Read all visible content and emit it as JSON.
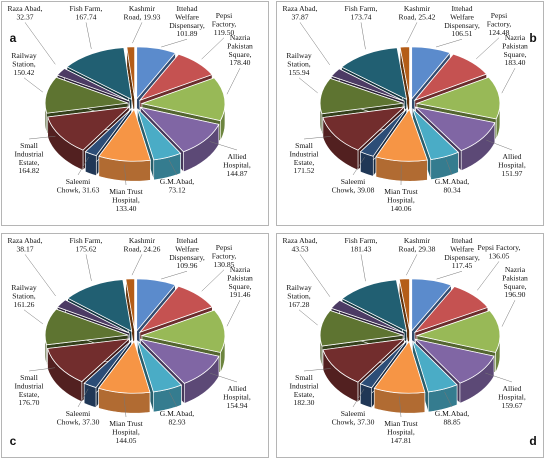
{
  "colors": {
    "Ittehad Welfare Dispensary": "#5b8bcc",
    "Pepsi Factory": "#c55251",
    "Nazria Pakistan Square": "#98b957",
    "Allied Hospital": "#8066a4",
    "G.M.Abad": "#4aacc6",
    "Mian Trust Hospital": "#f69545",
    "Saleemi Chowk": "#2c4d77",
    "Small Industrial Estate": "#722d2d",
    "Railway Station": "#5e7431",
    "Raza Abad": "#4c3b64",
    "Fish Farm": "#215f72",
    "Kashmir Road": "#b45d18"
  },
  "chart_data": [
    {
      "type": "pie",
      "panel": "a",
      "categories": [
        "Ittehad Welfare Dispensary",
        "Pepsi Factory",
        "Nazria Pakistan Square",
        "Allied Hospital",
        "G.M.Abad",
        "Mian Trust Hospital",
        "Saleemi Chowk",
        "Small Industrial Estate",
        "Railway Station",
        "Raza Abad",
        "Fish Farm",
        "Kashmir Road"
      ],
      "labels": [
        "Ittehad Welfare Dispensary, 101.89",
        "Pepsi Factory, 119.50",
        "Nazria Pakistan Square, 178.40",
        "Allied Hospital, 144.87",
        "G.M.Abad, 73.12",
        "Mian Trust Hospital, 133.40",
        "Saleemi Chowk, 31.63",
        "Small Industrial Estate, 164.82",
        "Railway Station, 150.42",
        "Raza Abad, 32.37",
        "Fish Farm, 167.74",
        "Kashmir Road, 19.93"
      ],
      "values": [
        101.89,
        119.5,
        178.4,
        144.87,
        73.12,
        133.4,
        31.63,
        164.82,
        150.42,
        32.37,
        167.74,
        19.93
      ]
    },
    {
      "type": "pie",
      "panel": "b",
      "categories": [
        "Ittehad Welfare Dispensary",
        "Pepsi Factory",
        "Nazria Pakistan Square",
        "Allied Hospital",
        "G.M.Abad",
        "Mian Trust Hospital",
        "Saleemi Chowk",
        "Small Industrial Estate",
        "Railway Station",
        "Raza Abad",
        "Fish Farm",
        "Kashmir Road"
      ],
      "labels": [
        "Ittehad Welfare Dispensary, 106.51",
        "Pepsi Factory, 124.48",
        "Nazria Pakistan Square, 183.40",
        "Allied Hospital, 151.97",
        "G.M.Abad, 80.34",
        "Mian Trust Hospital, 140.06",
        "Saleemi Chowk, 39.08",
        "Small Industrial Estate, 171.52",
        "Railway Station, 155.94",
        "Raza Abad, 37.87",
        "Fish Farm, 173.74",
        "Kashmir Road, 25.42"
      ],
      "values": [
        106.51,
        124.48,
        183.4,
        151.97,
        80.34,
        140.06,
        39.08,
        171.52,
        155.94,
        37.87,
        173.74,
        25.42
      ]
    },
    {
      "type": "pie",
      "panel": "c",
      "categories": [
        "Ittehad Welfare Dispensary",
        "Pepsi Factory",
        "Nazria Pakistan Square",
        "Allied Hospital",
        "G.M.Abad",
        "Mian Trust Hospital",
        "Saleemi Chowk",
        "Small Industrial Estate",
        "Railway Station",
        "Raza Abad",
        "Fish Farm",
        "Kashmir Road"
      ],
      "labels": [
        "Ittehad Welfare Dispensary, 109.96",
        "Pepsi Factory, 130.85",
        "Nazria Pakistan Square, 191.46",
        "Allied Hospital, 154.94",
        "G.M.Abad, 82.93",
        "Mian Trust Hospital, 144.05",
        "Saleemi Chowk, 37.30",
        "Small Industrial Estate, 176.70",
        "Railway Station, 161.26",
        "Raza Abad, 38.17",
        "Fish Farm, 175.62",
        "Kashmir Road, 24.26"
      ],
      "values": [
        109.96,
        130.85,
        191.46,
        154.94,
        82.93,
        144.05,
        37.3,
        176.7,
        161.26,
        38.17,
        175.62,
        24.26
      ]
    },
    {
      "type": "pie",
      "panel": "d",
      "categories": [
        "Ittehad Welfare Dispensary",
        "Pepsi Factory",
        "Nazria Pakistan Square",
        "Allied Hospital",
        "G.M.Abad",
        "Mian Trust Hospital",
        "Saleemi Chowk",
        "Small Industrial Estate",
        "Railway Station",
        "Raza Abad",
        "Fish Farm",
        "Kashmir Road"
      ],
      "labels": [
        "Ittehad Welfare Dispensary, 117.45",
        "Pepsi Factory, 136.05",
        "Nazria Pakistan Square, 196.90",
        "Allied Hospital, 159.67",
        "G.M.Abad, 88.85",
        "Mian Trust Hospital, 147.81",
        "Saleemi Chowk, 37.30",
        "Small Industrial Estate, 182.30",
        "Railway Station, 167.28",
        "Raza Abad, 43.53",
        "Fish Farm, 181.43",
        "Kashmir Road, 29.38"
      ],
      "values": [
        117.45,
        136.05,
        196.9,
        159.67,
        88.85,
        147.81,
        37.3,
        182.3,
        167.28,
        43.53,
        181.43,
        29.38
      ]
    }
  ]
}
